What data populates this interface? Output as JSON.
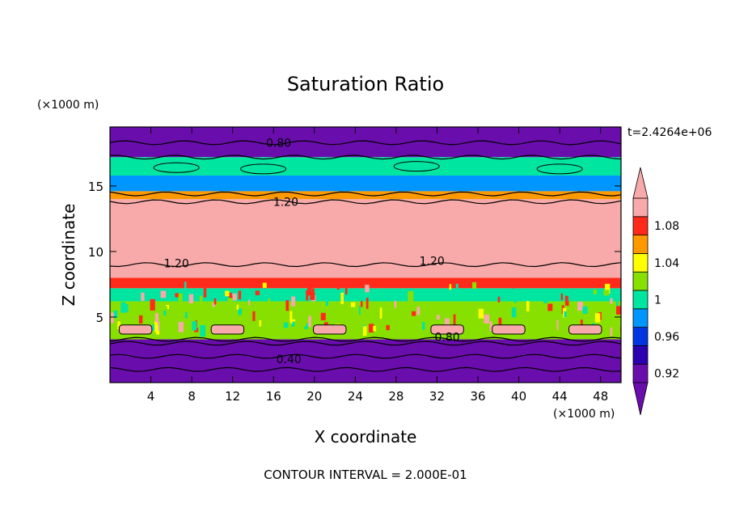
{
  "chart_data": {
    "type": "heatmap",
    "title": "Saturation Ratio",
    "xlabel": "X coordinate",
    "ylabel": "Z coordinate",
    "x_unit": "(×1000 m)",
    "y_unit": "(×1000 m)",
    "time_label": "t=2.4264e+06",
    "footer": "CONTOUR INTERVAL = 2.000E-01",
    "xlim": [
      0,
      50
    ],
    "ylim": [
      0,
      19.5
    ],
    "x_ticks": [
      4,
      8,
      12,
      16,
      20,
      24,
      28,
      32,
      36,
      40,
      44,
      48
    ],
    "y_ticks": [
      5,
      10,
      15
    ],
    "colorbar": {
      "levels": [
        0.92,
        0.94,
        0.96,
        0.98,
        1.0,
        1.02,
        1.04,
        1.06,
        1.08,
        1.1
      ],
      "tick_labels": [
        "1.08",
        "1.04",
        "1",
        "0.96",
        "0.92"
      ],
      "tick_values": [
        1.08,
        1.04,
        1.0,
        0.96,
        0.92
      ],
      "colors": [
        "#6a0dad",
        "#2a00b0",
        "#0036e0",
        "#0096ff",
        "#00e6a0",
        "#88e000",
        "#ffff00",
        "#ff9900",
        "#ff2a1a",
        "#f8aaaa"
      ]
    },
    "layers": [
      {
        "z": [
          0,
          3.3
        ],
        "value": 0.4,
        "color": "#6a0dad"
      },
      {
        "z": [
          3.3,
          6.2
        ],
        "value": 1.0,
        "color": "#88e000"
      },
      {
        "z": [
          6.2,
          7.2
        ],
        "value": 1.02,
        "color": "#00e6a0"
      },
      {
        "z": [
          7.2,
          8.0
        ],
        "value": 1.08,
        "color": "#ff2a1a"
      },
      {
        "z": [
          8.0,
          14.0
        ],
        "value": 1.2,
        "color": "#f8aaaa"
      },
      {
        "z": [
          14.0,
          14.6
        ],
        "value": 1.06,
        "color": "#ff9900"
      },
      {
        "z": [
          14.6,
          15.8
        ],
        "value": 0.96,
        "color": "#0096ff"
      },
      {
        "z": [
          15.8,
          17.2
        ],
        "value": 0.98,
        "color": "#00e6a0"
      },
      {
        "z": [
          17.2,
          19.5
        ],
        "value": 0.8,
        "color": "#6a0dad"
      }
    ],
    "contour_labels": [
      {
        "text": "0.80",
        "x": 16.5,
        "z": 18.3
      },
      {
        "text": "1.20",
        "x": 17.2,
        "z": 13.8
      },
      {
        "text": "1.20",
        "x": 6.5,
        "z": 9.1
      },
      {
        "text": "1.20",
        "x": 31.5,
        "z": 9.3
      },
      {
        "text": "0.80",
        "x": 33.0,
        "z": 3.5
      },
      {
        "text": "0.40",
        "x": 17.5,
        "z": 1.8
      }
    ]
  }
}
